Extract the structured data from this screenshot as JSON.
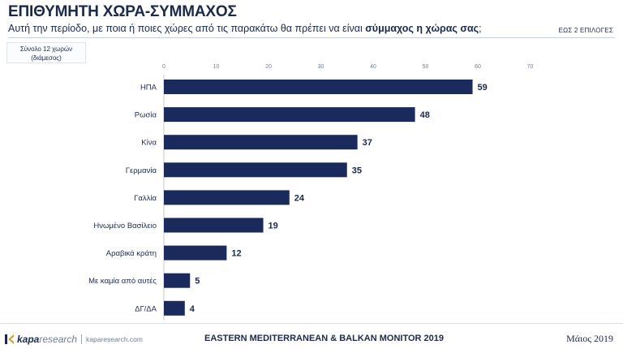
{
  "header": {
    "title": "ΕΠΙΘΥΜΗΤΗ ΧΩΡΑ-ΣΥΜΜΑΧΟΣ",
    "subtitle_prefix": "Αυτή την περίοδο, με ποια ή ποιες χώρες από τις παρακάτω θα πρέπει να είναι ",
    "subtitle_bold": "σύμμαχος η χώρας σας",
    "subtitle_suffix": ";",
    "choices_note": "ΕΩΣ 2 ΕΠΙΛΟΓΕΣ"
  },
  "base_note": {
    "line1": "Σύνολο 12 χωρών",
    "line2": "(διάμεσος)"
  },
  "chart_data": {
    "type": "bar",
    "orientation": "horizontal",
    "categories": [
      "ΗΠΑ",
      "Ρωσία",
      "Κίνα",
      "Γερμανία",
      "Γαλλία",
      "Ηνωμένο Βασίλειο",
      "Αραβικά κράτη",
      "Με καμία από αυτές",
      "ΔΓ/ΔΑ"
    ],
    "values": [
      59,
      48,
      37,
      35,
      24,
      19,
      12,
      5,
      4
    ],
    "xticks": [
      0,
      10,
      20,
      30,
      40,
      50,
      60,
      70
    ],
    "xlim": [
      0,
      70
    ],
    "grid": false,
    "bar_color": "#1b2a5c"
  },
  "footer": {
    "brand": "kapa",
    "brand_word": "research",
    "url": "kaparesearch.com",
    "center": "EASTERN MEDITERRANEAN & BALKAN MONITOR 2019",
    "date": "Μάιος 2019"
  }
}
